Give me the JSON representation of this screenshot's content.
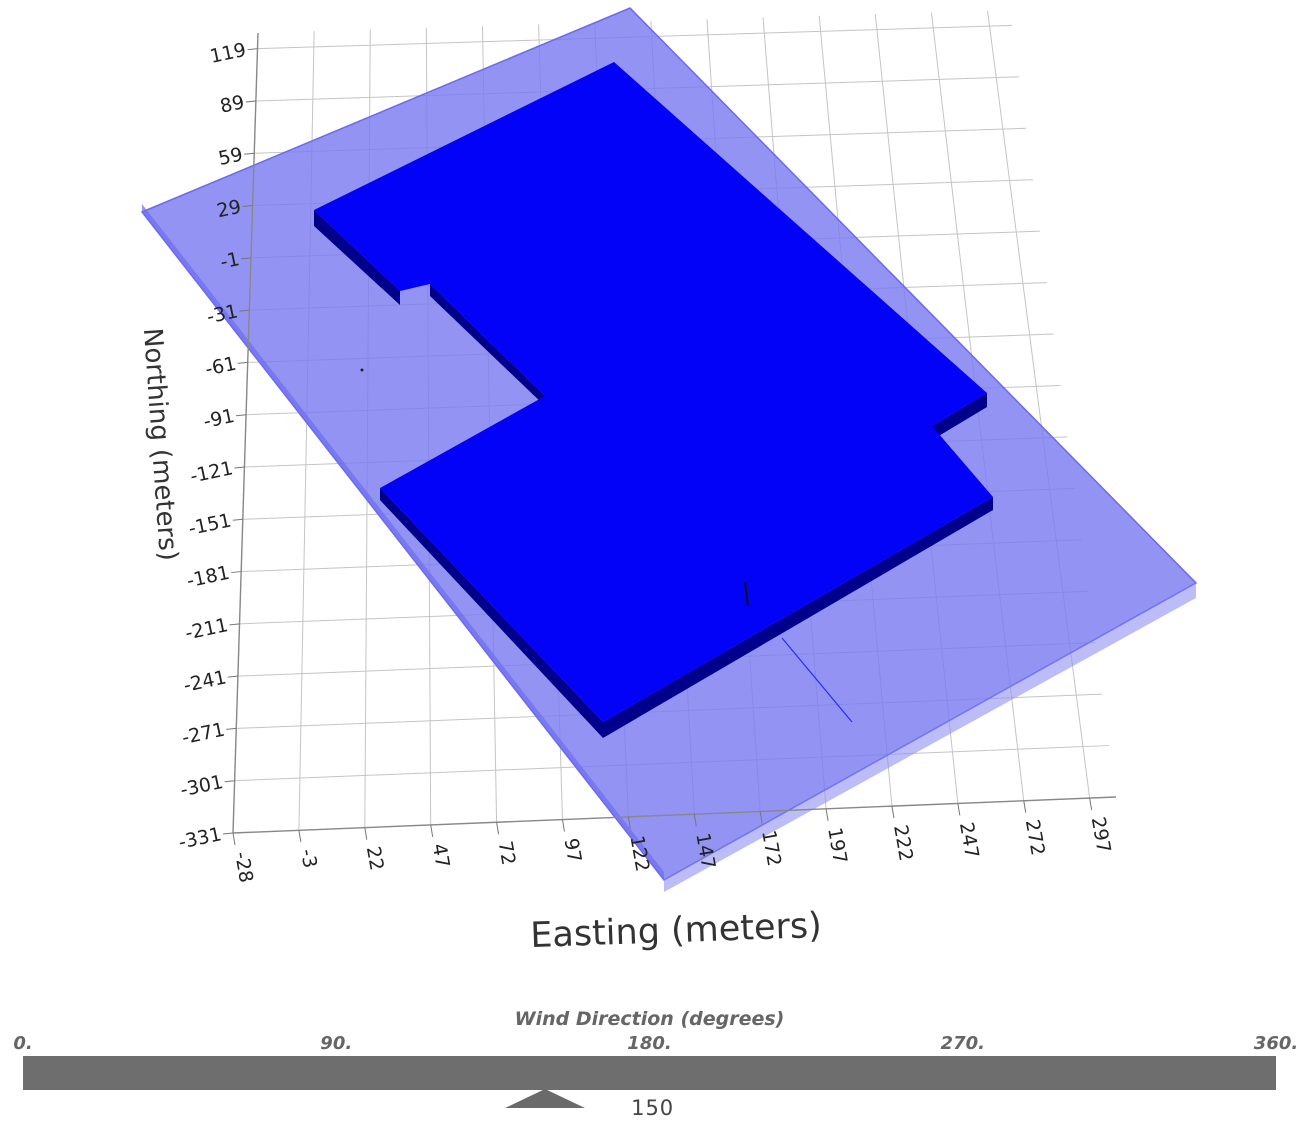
{
  "chart_data": {
    "type": "3d-scene",
    "xlabel": "Easting (meters)",
    "ylabel": "Northing (meters)",
    "x_ticks": [
      "-28",
      "-3",
      "22",
      "47",
      "72",
      "97",
      "122",
      "147",
      "172",
      "197",
      "222",
      "247",
      "272",
      "297"
    ],
    "y_ticks": [
      "-331",
      "-301",
      "-271",
      "-241",
      "-211",
      "-181",
      "-151",
      "-121",
      "-91",
      "-61",
      "-31",
      "-1",
      "29",
      "59",
      "89",
      "119"
    ],
    "grid": true,
    "colors": {
      "ground_plane": "#7575f0",
      "building_top": "#0202f8",
      "building_side": "#00008a",
      "grid_line": "#c4c4c4",
      "axis_line": "#888888"
    }
  },
  "wind": {
    "title": "Wind Direction (degrees)",
    "min": 0,
    "max": 360,
    "ticks": [
      "0.",
      "90.",
      "180.",
      "270.",
      "360."
    ],
    "value": 150,
    "value_label": "150"
  }
}
